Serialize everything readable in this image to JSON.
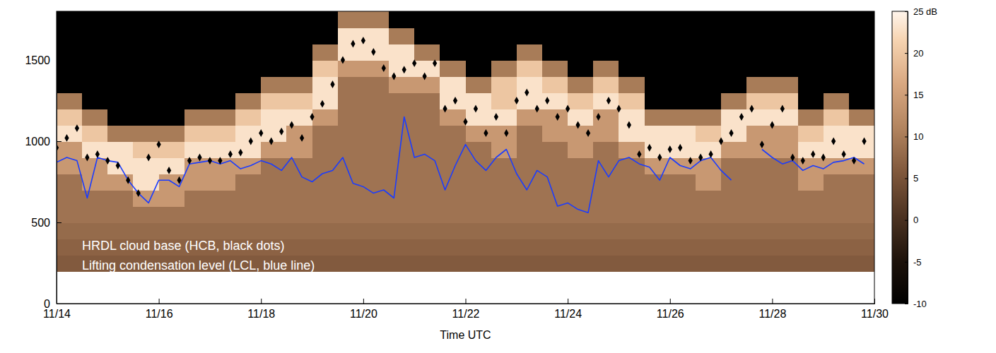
{
  "chart_data": {
    "type": "heatmap",
    "x_label": "Time UTC",
    "xlim": [
      14,
      30
    ],
    "xticks": [
      {
        "value": 14,
        "label": "11/14"
      },
      {
        "value": 16,
        "label": "11/16"
      },
      {
        "value": 18,
        "label": "11/18"
      },
      {
        "value": 20,
        "label": "11/20"
      },
      {
        "value": 22,
        "label": "11/22"
      },
      {
        "value": 24,
        "label": "11/24"
      },
      {
        "value": 26,
        "label": "11/26"
      },
      {
        "value": 28,
        "label": "11/28"
      },
      {
        "value": 30,
        "label": "11/30"
      }
    ],
    "ylim": [
      0,
      1800
    ],
    "yticks": [
      0,
      500,
      1000,
      1500
    ],
    "legend": "lower left",
    "x": [
      14,
      14.2,
      14.4,
      14.6,
      14.8,
      15,
      15.2,
      15.4,
      15.6,
      15.8,
      16,
      16.2,
      16.4,
      16.6,
      16.8,
      17,
      17.2,
      17.4,
      17.6,
      17.8,
      18,
      18.2,
      18.4,
      18.6,
      18.8,
      19,
      19.2,
      19.4,
      19.6,
      19.8,
      20,
      20.2,
      20.4,
      20.6,
      20.8,
      21,
      21.2,
      21.4,
      21.6,
      21.8,
      22,
      22.2,
      22.4,
      22.6,
      22.8,
      23,
      23.2,
      23.4,
      23.6,
      23.8,
      24,
      24.2,
      24.4,
      24.6,
      24.8,
      25,
      25.2,
      25.4,
      25.6,
      25.8,
      26,
      26.2,
      26.4,
      26.6,
      26.8,
      27,
      27.2,
      27.4,
      27.6,
      27.8,
      28,
      28.2,
      28.4,
      28.6,
      28.8,
      29,
      29.2,
      29.4,
      29.6,
      29.8
    ],
    "series": [
      {
        "name": "HRDL cloud base (HCB, black dots)",
        "type": "scatter",
        "color": "#000000",
        "marker": "diamond",
        "values": [
          960,
          1020,
          1080,
          900,
          920,
          880,
          850,
          760,
          680,
          900,
          980,
          820,
          760,
          880,
          900,
          880,
          880,
          920,
          930,
          1000,
          1050,
          1000,
          1060,
          1100,
          1020,
          1150,
          1230,
          1350,
          1500,
          1600,
          1620,
          1550,
          1450,
          1400,
          1440,
          1480,
          1400,
          1480,
          1200,
          1250,
          1120,
          1200,
          1050,
          1150,
          1050,
          1250,
          1300,
          1200,
          1250,
          1150,
          1200,
          1100,
          1050,
          1150,
          1250,
          1200,
          1100,
          920,
          960,
          900,
          950,
          960,
          880,
          900,
          920,
          1000,
          1050,
          1150,
          1200,
          980,
          1100,
          1200,
          900,
          880,
          920,
          900,
          1000,
          920,
          880,
          1000
        ]
      },
      {
        "name": "Lifting condensation level (LCL, blue line)",
        "type": "line",
        "color": "#1a3cff",
        "line_style": "solid",
        "values": [
          870,
          900,
          880,
          650,
          900,
          880,
          870,
          760,
          680,
          620,
          760,
          760,
          720,
          860,
          870,
          880,
          860,
          880,
          830,
          850,
          880,
          860,
          820,
          900,
          780,
          750,
          800,
          820,
          900,
          740,
          720,
          680,
          700,
          650,
          1150,
          900,
          920,
          880,
          700,
          850,
          980,
          880,
          820,
          900,
          950,
          800,
          700,
          820,
          780,
          600,
          620,
          580,
          560,
          880,
          780,
          880,
          900,
          860,
          840,
          760,
          900,
          850,
          830,
          880,
          900,
          820,
          760,
          null,
          null,
          950,
          900,
          860,
          880,
          820,
          850,
          830,
          870,
          880,
          900,
          860
        ]
      }
    ],
    "heatmap": {
      "x": [
        14.25,
        14.75,
        15.25,
        15.75,
        16.25,
        16.75,
        17.25,
        17.75,
        18.25,
        18.75,
        19.25,
        19.75,
        20.25,
        20.75,
        21.25,
        21.75,
        22.25,
        22.75,
        23.25,
        23.75,
        24.25,
        24.75,
        25.25,
        25.75,
        26.25,
        26.75,
        27.25,
        27.75,
        28.25,
        28.75,
        29.25,
        29.75
      ],
      "y": [
        250,
        350,
        450,
        550,
        650,
        750,
        850,
        950,
        1050,
        1150,
        1250,
        1350,
        1450,
        1550,
        1650,
        1750
      ],
      "values": [
        [
          6,
          7,
          8,
          9,
          9,
          9,
          14,
          14,
          23,
          20,
          10,
          -10,
          -10,
          -10,
          -10,
          -10
        ],
        [
          6,
          7,
          8,
          9,
          9,
          14,
          14,
          23,
          20,
          10,
          -10,
          -10,
          -10,
          -10,
          -10,
          -10
        ],
        [
          6,
          7,
          8,
          9,
          9,
          14,
          23,
          23,
          10,
          -10,
          -10,
          -10,
          -10,
          -10,
          -10,
          -10
        ],
        [
          6,
          7,
          8,
          9,
          14,
          23,
          23,
          20,
          10,
          -10,
          -10,
          -10,
          -10,
          -10,
          -10,
          -10
        ],
        [
          6,
          7,
          8,
          9,
          14,
          14,
          23,
          20,
          10,
          -10,
          -10,
          -10,
          -10,
          -10,
          -10,
          -10
        ],
        [
          6,
          7,
          8,
          9,
          9,
          14,
          14,
          23,
          20,
          10,
          -10,
          -10,
          -10,
          -10,
          -10,
          -10
        ],
        [
          6,
          7,
          8,
          9,
          9,
          14,
          14,
          23,
          20,
          10,
          -10,
          -10,
          -10,
          -10,
          -10,
          -10
        ],
        [
          6,
          7,
          8,
          9,
          9,
          9,
          14,
          23,
          23,
          20,
          10,
          -10,
          -10,
          -10,
          -10,
          -10
        ],
        [
          6,
          7,
          8,
          9,
          9,
          9,
          9,
          14,
          23,
          23,
          20,
          10,
          -10,
          -10,
          -10,
          -10
        ],
        [
          6,
          7,
          8,
          9,
          9,
          9,
          9,
          14,
          14,
          23,
          20,
          10,
          -10,
          -10,
          -10,
          -10
        ],
        [
          6,
          7,
          8,
          9,
          9,
          9,
          9,
          9,
          9,
          14,
          23,
          23,
          20,
          10,
          -10,
          -10
        ],
        [
          6,
          7,
          8,
          9,
          9,
          9,
          9,
          9,
          9,
          9,
          9,
          9,
          14,
          23,
          23,
          10
        ],
        [
          6,
          7,
          8,
          9,
          9,
          9,
          9,
          9,
          9,
          9,
          9,
          9,
          14,
          23,
          23,
          10
        ],
        [
          6,
          7,
          8,
          9,
          9,
          9,
          9,
          9,
          9,
          9,
          9,
          14,
          23,
          23,
          10,
          -10
        ],
        [
          6,
          7,
          8,
          9,
          9,
          9,
          9,
          9,
          9,
          9,
          9,
          14,
          23,
          10,
          -10,
          -10
        ],
        [
          6,
          7,
          8,
          9,
          9,
          9,
          9,
          9,
          9,
          14,
          23,
          23,
          10,
          -10,
          -10,
          -10
        ],
        [
          6,
          7,
          8,
          9,
          9,
          9,
          9,
          9,
          14,
          23,
          23,
          10,
          -10,
          -10,
          -10,
          -10
        ],
        [
          6,
          7,
          8,
          9,
          9,
          9,
          9,
          14,
          14,
          23,
          20,
          20,
          10,
          -10,
          -10,
          -10
        ],
        [
          6,
          7,
          8,
          9,
          9,
          9,
          9,
          9,
          9,
          14,
          23,
          23,
          20,
          10,
          -10,
          -10
        ],
        [
          6,
          7,
          8,
          9,
          9,
          9,
          9,
          9,
          14,
          14,
          23,
          20,
          10,
          -10,
          -10,
          -10
        ],
        [
          6,
          7,
          8,
          9,
          9,
          9,
          9,
          14,
          14,
          23,
          20,
          10,
          -10,
          -10,
          -10,
          -10
        ],
        [
          6,
          7,
          8,
          9,
          9,
          9,
          9,
          9,
          14,
          14,
          23,
          20,
          10,
          -10,
          -10,
          -10
        ],
        [
          6,
          7,
          8,
          9,
          9,
          9,
          9,
          14,
          23,
          23,
          20,
          10,
          -10,
          -10,
          -10,
          -10
        ],
        [
          6,
          7,
          8,
          9,
          9,
          9,
          14,
          23,
          23,
          10,
          -10,
          -10,
          -10,
          -10,
          -10,
          -10
        ],
        [
          6,
          7,
          8,
          9,
          9,
          9,
          14,
          23,
          23,
          10,
          -10,
          -10,
          -10,
          -10,
          -10,
          -10
        ],
        [
          6,
          7,
          8,
          9,
          9,
          14,
          14,
          23,
          20,
          10,
          -10,
          -10,
          -10,
          -10,
          -10,
          -10
        ],
        [
          6,
          7,
          8,
          9,
          9,
          9,
          9,
          14,
          23,
          23,
          10,
          -10,
          -10,
          -10,
          -10,
          -10
        ],
        [
          6,
          7,
          8,
          9,
          9,
          9,
          9,
          14,
          14,
          23,
          20,
          10,
          -10,
          -10,
          -10,
          -10
        ],
        [
          6,
          7,
          8,
          9,
          9,
          9,
          9,
          14,
          14,
          23,
          20,
          10,
          -10,
          -10,
          -10,
          -10
        ],
        [
          6,
          7,
          8,
          9,
          9,
          14,
          14,
          23,
          20,
          10,
          -10,
          -10,
          -10,
          -10,
          -10,
          -10
        ],
        [
          6,
          7,
          8,
          9,
          9,
          9,
          14,
          23,
          23,
          20,
          10,
          -10,
          -10,
          -10,
          -10,
          -10
        ],
        [
          6,
          7,
          8,
          9,
          9,
          9,
          14,
          23,
          23,
          10,
          -10,
          -10,
          -10,
          -10,
          -10,
          -10
        ]
      ]
    },
    "colorbar": {
      "range": [
        -10,
        25
      ],
      "ticks": [
        -10,
        -5,
        0,
        5,
        10,
        15,
        20,
        {
          "value": 25,
          "label": "25 dB"
        }
      ]
    }
  }
}
